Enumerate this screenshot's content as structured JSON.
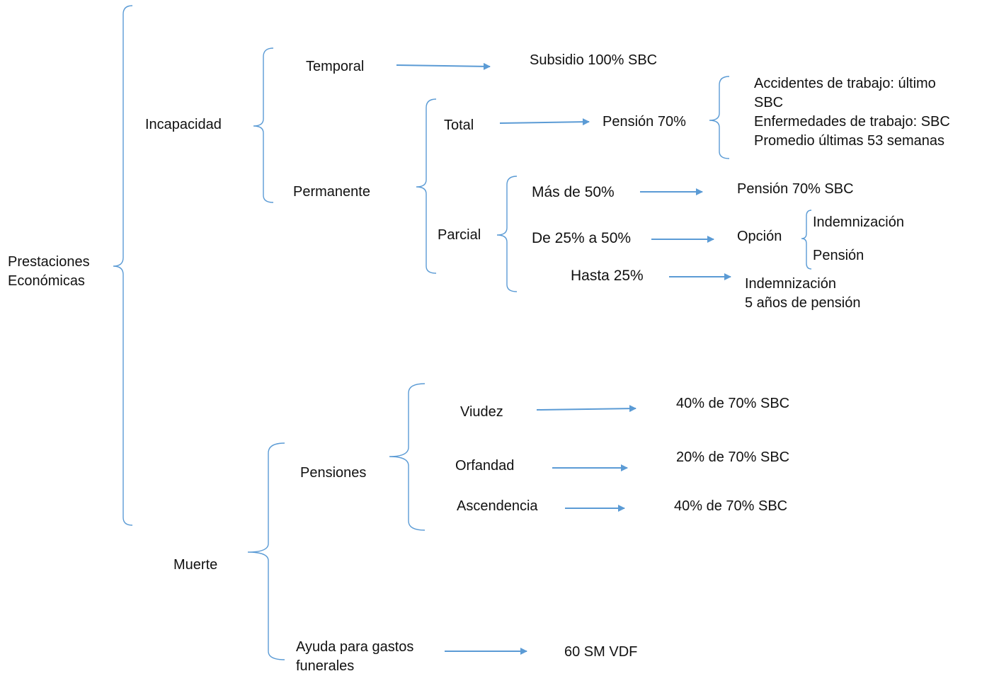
{
  "colors": {
    "bracket": "#5b9bd5",
    "arrow": "#5b9bd5",
    "text": "#111111",
    "background": "#ffffff"
  },
  "nodes": {
    "root": {
      "line1": "Prestaciones",
      "line2": "Económicas"
    },
    "incapacidad": "Incapacidad",
    "temporal": "Temporal",
    "subsidio": "Subsidio 100% SBC",
    "permanente": "Permanente",
    "total": "Total",
    "pension_70": "Pensión 70%",
    "total_details": {
      "line1": "Accidentes de trabajo: último",
      "line2": "SBC",
      "line3": "Enfermedades de trabajo: SBC",
      "line4": "Promedio últimas 53 semanas"
    },
    "parcial": "Parcial",
    "mas_50": "Más de 50%",
    "pension_70_sbc": "Pensión 70% SBC",
    "de_25_50": "De 25% a 50%",
    "opcion": "Opción",
    "opcion_indemnizacion": "Indemnización",
    "opcion_pension": "Pensión",
    "hasta_25": "Hasta 25%",
    "hasta_25_result": {
      "line1": "Indemnización",
      "line2": "5 años de pensión"
    },
    "muerte": "Muerte",
    "pensiones": "Pensiones",
    "viudez": "Viudez",
    "viudez_result": "40% de 70% SBC",
    "orfandad": "Orfandad",
    "orfandad_result": "20% de 70% SBC",
    "ascendencia": "Ascendencia",
    "ascendencia_result": "40% de 70% SBC",
    "ayuda": {
      "line1": "Ayuda para gastos",
      "line2": "funerales"
    },
    "ayuda_result": "60 SM VDF"
  }
}
